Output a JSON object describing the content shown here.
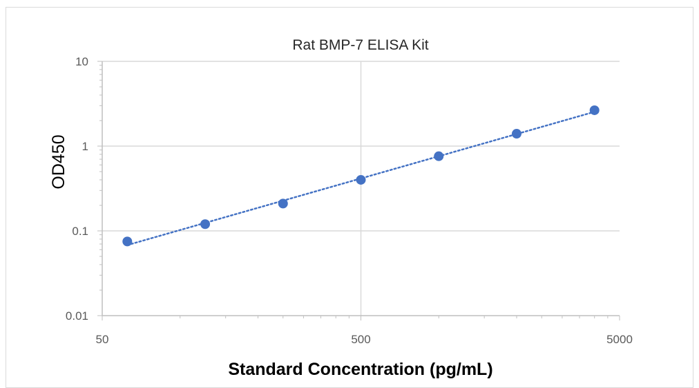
{
  "chart_data": {
    "type": "scatter",
    "title": "Rat BMP-7 ELISA Kit",
    "xlabel": "Standard Concentration (pg/mL)",
    "ylabel": "OD450",
    "x_scale": "log",
    "y_scale": "log",
    "xlim": [
      50,
      5000
    ],
    "ylim": [
      0.01,
      10
    ],
    "x_ticks": [
      "50",
      "500",
      "5000"
    ],
    "y_ticks": [
      "0.01",
      "0.1",
      "1",
      "10"
    ],
    "grid": true,
    "trendline": "dotted",
    "series": [
      {
        "x": [
          62.5,
          125,
          250,
          500,
          1000,
          2000,
          4000
        ],
        "y": [
          0.075,
          0.12,
          0.21,
          0.4,
          0.76,
          1.4,
          2.65
        ]
      }
    ],
    "colors": {
      "marker": "#4472c4",
      "trendline": "#4472c4",
      "gridline": "#d9d9d9",
      "axis": "#bfbfbf"
    }
  }
}
